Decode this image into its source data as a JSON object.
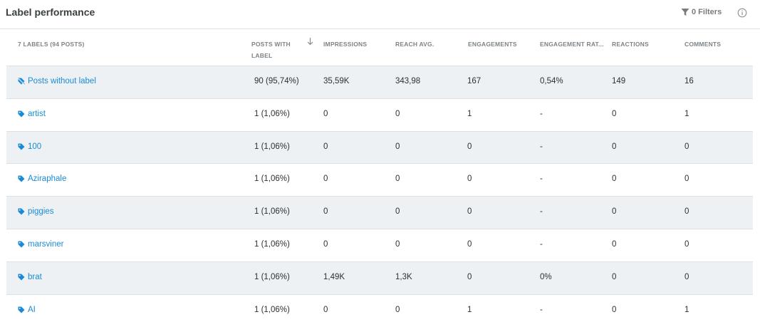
{
  "panel": {
    "title": "Label performance",
    "filters_label": "0 Filters",
    "filter_icon": "filter-icon",
    "info_icon": "info-icon"
  },
  "columns": {
    "labels": "7 LABELS (94 POSTS)",
    "posts_with_label": "POSTS WITH LABEL",
    "impressions": "IMPRESSIONS",
    "reach_avg": "REACH AVG.",
    "engagements": "ENGAGEMENTS",
    "engagement_rate": "ENGAGEMENT RAT...",
    "reactions": "REACTIONS",
    "comments": "COMMENTS",
    "sort_icon": "sort-down-arrow-icon"
  },
  "rows": [
    {
      "label": "Posts without label",
      "icon": "tag-off-icon",
      "posts": "90 (95,74%)",
      "impressions": "35,59K",
      "reach": "343,98",
      "engagements": "167",
      "rate": "0,54%",
      "reactions": "149",
      "comments": "16"
    },
    {
      "label": "artist",
      "icon": "tag-icon",
      "posts": "1 (1,06%)",
      "impressions": "0",
      "reach": "0",
      "engagements": "1",
      "rate": "-",
      "reactions": "0",
      "comments": "1"
    },
    {
      "label": "100",
      "icon": "tag-icon",
      "posts": "1 (1,06%)",
      "impressions": "0",
      "reach": "0",
      "engagements": "0",
      "rate": "-",
      "reactions": "0",
      "comments": "0"
    },
    {
      "label": "Aziraphale",
      "icon": "tag-icon",
      "posts": "1 (1,06%)",
      "impressions": "0",
      "reach": "0",
      "engagements": "0",
      "rate": "-",
      "reactions": "0",
      "comments": "0"
    },
    {
      "label": "piggies",
      "icon": "tag-icon",
      "posts": "1 (1,06%)",
      "impressions": "0",
      "reach": "0",
      "engagements": "0",
      "rate": "-",
      "reactions": "0",
      "comments": "0"
    },
    {
      "label": "marsviner",
      "icon": "tag-icon",
      "posts": "1 (1,06%)",
      "impressions": "0",
      "reach": "0",
      "engagements": "0",
      "rate": "-",
      "reactions": "0",
      "comments": "0"
    },
    {
      "label": "brat",
      "icon": "tag-icon",
      "posts": "1 (1,06%)",
      "impressions": "1,49K",
      "reach": "1,3K",
      "engagements": "0",
      "rate": "0%",
      "reactions": "0",
      "comments": "0"
    },
    {
      "label": "AI",
      "icon": "tag-icon",
      "posts": "1 (1,06%)",
      "impressions": "0",
      "reach": "0",
      "engagements": "1",
      "rate": "-",
      "reactions": "0",
      "comments": "1"
    }
  ],
  "colors": {
    "link": "#1b8ad6",
    "row_alt_bg": "#eef1f3",
    "divider": "#dde1e4",
    "header_text": "#7d8387"
  }
}
